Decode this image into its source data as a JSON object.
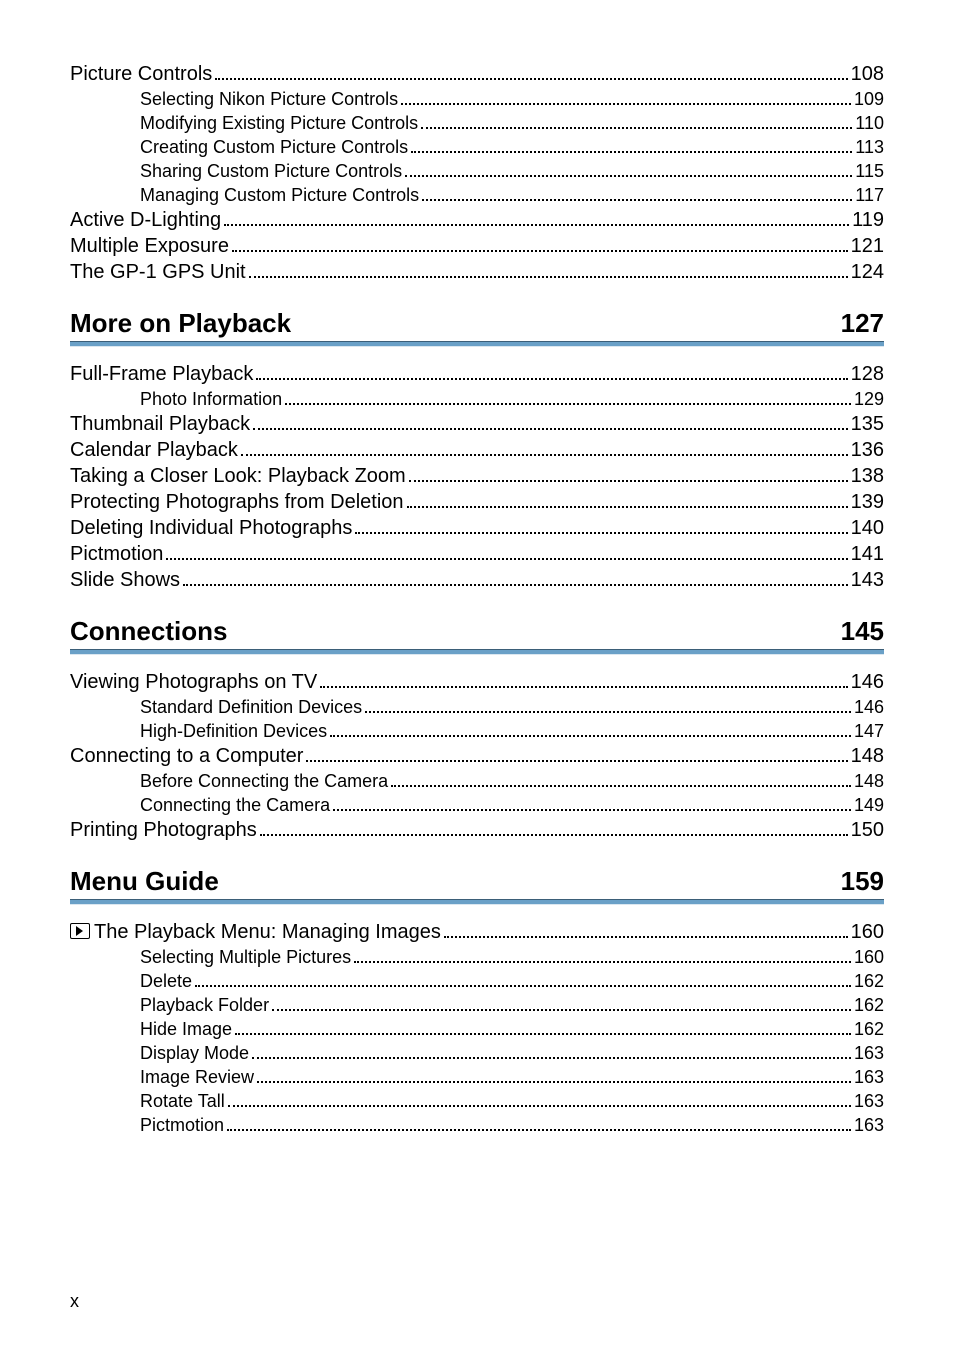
{
  "footer_page": "x",
  "sections": [
    {
      "heading": null,
      "page": null,
      "entries": [
        {
          "level": 0,
          "label": "Picture Controls",
          "page": "108"
        },
        {
          "level": 1,
          "label": "Selecting Nikon Picture Controls",
          "page": "109"
        },
        {
          "level": 1,
          "label": "Modifying Existing Picture Controls",
          "page": "110"
        },
        {
          "level": 1,
          "label": "Creating Custom Picture Controls",
          "page": "113"
        },
        {
          "level": 1,
          "label": "Sharing Custom Picture Controls",
          "page": "115"
        },
        {
          "level": 1,
          "label": "Managing Custom Picture Controls",
          "page": "117"
        },
        {
          "level": 0,
          "label": "Active D-Lighting",
          "page": "119"
        },
        {
          "level": 0,
          "label": "Multiple Exposure",
          "page": "121"
        },
        {
          "level": 0,
          "label": "The GP-1 GPS Unit",
          "page": "124"
        }
      ]
    },
    {
      "heading": "More on Playback",
      "page": "127",
      "entries": [
        {
          "level": 0,
          "label": "Full-Frame Playback",
          "page": "128"
        },
        {
          "level": 1,
          "label": "Photo Information",
          "page": "129"
        },
        {
          "level": 0,
          "label": "Thumbnail Playback",
          "page": "135"
        },
        {
          "level": 0,
          "label": "Calendar Playback",
          "page": "136"
        },
        {
          "level": 0,
          "label": "Taking a Closer Look: Playback Zoom",
          "page": "138"
        },
        {
          "level": 0,
          "label": "Protecting Photographs from Deletion",
          "page": "139"
        },
        {
          "level": 0,
          "label": "Deleting Individual Photographs",
          "page": "140"
        },
        {
          "level": 0,
          "label": "Pictmotion",
          "page": "141"
        },
        {
          "level": 0,
          "label": "Slide Shows",
          "page": "143"
        }
      ]
    },
    {
      "heading": "Connections",
      "page": "145",
      "entries": [
        {
          "level": 0,
          "label": "Viewing Photographs on TV",
          "page": "146"
        },
        {
          "level": 1,
          "label": "Standard Definition Devices",
          "page": "146"
        },
        {
          "level": 1,
          "label": "High-Definition Devices",
          "page": "147"
        },
        {
          "level": 0,
          "label": "Connecting to a Computer",
          "page": "148"
        },
        {
          "level": 1,
          "label": "Before Connecting the Camera",
          "page": "148"
        },
        {
          "level": 1,
          "label": "Connecting the Camera",
          "page": "149"
        },
        {
          "level": 0,
          "label": "Printing Photographs",
          "page": "150"
        }
      ]
    },
    {
      "heading": "Menu Guide",
      "page": "159",
      "entries": [
        {
          "level": 0,
          "icon": "play",
          "label": "The Playback Menu: Managing Images",
          "page": "160"
        },
        {
          "level": 1,
          "label": "Selecting Multiple Pictures",
          "page": "160"
        },
        {
          "level": 2,
          "label": "Delete",
          "page": "162"
        },
        {
          "level": 2,
          "label": "Playback Folder",
          "page": "162"
        },
        {
          "level": 2,
          "label": "Hide Image",
          "page": "162"
        },
        {
          "level": 2,
          "label": "Display Mode",
          "page": "163"
        },
        {
          "level": 2,
          "label": "Image Review",
          "page": "163"
        },
        {
          "level": 2,
          "label": "Rotate Tall",
          "page": "163"
        },
        {
          "level": 2,
          "label": "Pictmotion",
          "page": "163"
        }
      ]
    }
  ]
}
